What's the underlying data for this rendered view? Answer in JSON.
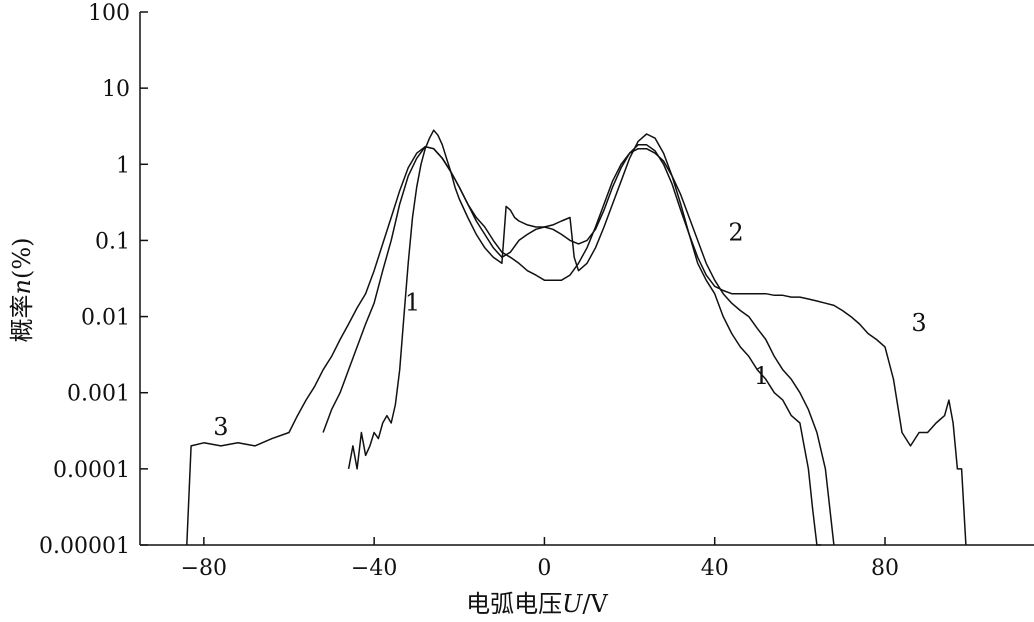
{
  "chart_data": {
    "type": "line",
    "xlabel_prefix": "电弧电压",
    "xlabel_var": "U",
    "xlabel_unit": "/V",
    "ylabel_prefix": "概率",
    "ylabel_var": "n",
    "ylabel_unit": "(%)",
    "xlim": [
      -95,
      115
    ],
    "ylim": [
      1e-05,
      100
    ],
    "yscale": "log",
    "x_ticks": [
      -80,
      -40,
      0,
      40,
      80
    ],
    "x_tick_labels": [
      "−80",
      "−40",
      "0",
      "40",
      "80"
    ],
    "y_ticks": [
      1e-05,
      0.0001,
      0.001,
      0.01,
      0.1,
      1,
      10,
      100
    ],
    "y_tick_labels": [
      "0.00001",
      "0.0001",
      "0.001",
      "0.01",
      "0.1",
      "1",
      "10",
      "100"
    ],
    "grid": false,
    "series": [
      {
        "name": "1",
        "label_x": -31,
        "label_y": 0.012,
        "x": [
          -46,
          -45,
          -44,
          -43,
          -42,
          -41,
          -40,
          -39,
          -38,
          -37,
          -36,
          -35,
          -34,
          -33,
          -32,
          -31,
          -30,
          -29,
          -28,
          -27,
          -26,
          -25,
          -24,
          -23,
          -22,
          -21,
          -20,
          -18,
          -16,
          -14,
          -12,
          -10,
          -9,
          -8,
          -7,
          -6,
          -4,
          -2,
          0,
          2,
          4,
          6,
          7,
          8,
          10,
          12,
          14,
          16,
          18,
          20,
          22,
          24,
          26,
          28,
          30,
          32,
          34,
          36,
          38,
          40,
          42,
          44,
          46,
          48,
          50,
          52,
          54,
          56,
          58,
          60,
          61,
          62,
          63,
          64,
          65
        ],
        "y": [
          0.0001,
          0.0002,
          0.0001,
          0.0003,
          0.00015,
          0.0002,
          0.0003,
          0.00025,
          0.0004,
          0.0005,
          0.0004,
          0.0007,
          0.002,
          0.01,
          0.05,
          0.2,
          0.5,
          1.0,
          1.6,
          2.2,
          2.8,
          2.4,
          1.8,
          1.2,
          0.8,
          0.5,
          0.35,
          0.2,
          0.12,
          0.08,
          0.06,
          0.05,
          0.28,
          0.25,
          0.2,
          0.18,
          0.16,
          0.15,
          0.15,
          0.16,
          0.18,
          0.2,
          0.06,
          0.04,
          0.05,
          0.08,
          0.15,
          0.3,
          0.6,
          1.2,
          2.0,
          2.5,
          2.2,
          1.4,
          0.7,
          0.3,
          0.12,
          0.05,
          0.03,
          0.02,
          0.01,
          0.006,
          0.004,
          0.003,
          0.002,
          0.0015,
          0.001,
          0.0008,
          0.0005,
          0.0004,
          0.0002,
          0.0001,
          3e-05,
          1e-05,
          1e-05
        ]
      },
      {
        "name": "2",
        "label_x": 45,
        "label_y": 0.1,
        "x": [
          -52,
          -50,
          -48,
          -46,
          -44,
          -42,
          -40,
          -38,
          -36,
          -34,
          -32,
          -30,
          -28,
          -26,
          -24,
          -22,
          -20,
          -18,
          -16,
          -14,
          -12,
          -10,
          -8,
          -6,
          -4,
          -2,
          0,
          2,
          4,
          6,
          8,
          10,
          12,
          14,
          16,
          18,
          20,
          22,
          24,
          26,
          28,
          30,
          32,
          34,
          36,
          38,
          40,
          42,
          44,
          46,
          48,
          50,
          52,
          54,
          56,
          58,
          60,
          62,
          64,
          66,
          68
        ],
        "y": [
          0.0003,
          0.0006,
          0.001,
          0.002,
          0.004,
          0.008,
          0.015,
          0.04,
          0.1,
          0.3,
          0.7,
          1.2,
          1.7,
          1.6,
          1.2,
          0.8,
          0.5,
          0.3,
          0.2,
          0.15,
          0.1,
          0.07,
          0.06,
          0.05,
          0.04,
          0.035,
          0.03,
          0.03,
          0.03,
          0.035,
          0.05,
          0.08,
          0.15,
          0.3,
          0.6,
          1.0,
          1.4,
          1.6,
          1.6,
          1.4,
          1.1,
          0.7,
          0.4,
          0.2,
          0.1,
          0.05,
          0.03,
          0.02,
          0.015,
          0.012,
          0.01,
          0.007,
          0.005,
          0.003,
          0.002,
          0.0015,
          0.001,
          0.0006,
          0.0003,
          0.0001,
          1e-05
        ]
      },
      {
        "name": "3",
        "label_x": -76,
        "label_y": 0.00028,
        "x": [
          -84,
          -83,
          -80,
          -76,
          -72,
          -68,
          -64,
          -60,
          -58,
          -56,
          -54,
          -52,
          -50,
          -48,
          -46,
          -44,
          -42,
          -40,
          -38,
          -36,
          -34,
          -32,
          -30,
          -28,
          -26,
          -24,
          -22,
          -20,
          -18,
          -16,
          -14,
          -12,
          -10,
          -8,
          -6,
          -4,
          -2,
          0,
          2,
          4,
          6,
          8,
          10,
          12,
          14,
          16,
          18,
          20,
          22,
          24,
          26,
          28,
          30,
          32,
          34,
          36,
          38,
          40,
          42,
          44,
          46,
          48,
          50,
          52,
          54,
          56,
          58,
          60,
          62,
          64,
          66,
          68,
          70,
          72,
          74,
          76,
          78,
          80,
          82,
          84,
          86,
          88,
          90,
          92,
          94,
          95,
          96,
          97,
          98,
          99
        ],
        "y": [
          1e-05,
          0.0002,
          0.00022,
          0.0002,
          0.00022,
          0.0002,
          0.00025,
          0.0003,
          0.0005,
          0.0008,
          0.0012,
          0.002,
          0.003,
          0.005,
          0.008,
          0.013,
          0.02,
          0.04,
          0.09,
          0.2,
          0.45,
          0.9,
          1.4,
          1.7,
          1.6,
          1.2,
          0.8,
          0.5,
          0.3,
          0.18,
          0.12,
          0.08,
          0.06,
          0.07,
          0.1,
          0.12,
          0.14,
          0.15,
          0.14,
          0.12,
          0.1,
          0.09,
          0.1,
          0.14,
          0.25,
          0.5,
          0.9,
          1.4,
          1.8,
          1.8,
          1.5,
          1.0,
          0.55,
          0.25,
          0.12,
          0.06,
          0.035,
          0.025,
          0.022,
          0.02,
          0.02,
          0.02,
          0.02,
          0.02,
          0.019,
          0.019,
          0.018,
          0.018,
          0.017,
          0.016,
          0.015,
          0.014,
          0.012,
          0.01,
          0.008,
          0.006,
          0.005,
          0.004,
          0.0015,
          0.0003,
          0.0002,
          0.0003,
          0.0003,
          0.0004,
          0.0005,
          0.0008,
          0.0004,
          0.0001,
          0.0001,
          1e-05
        ]
      }
    ]
  }
}
